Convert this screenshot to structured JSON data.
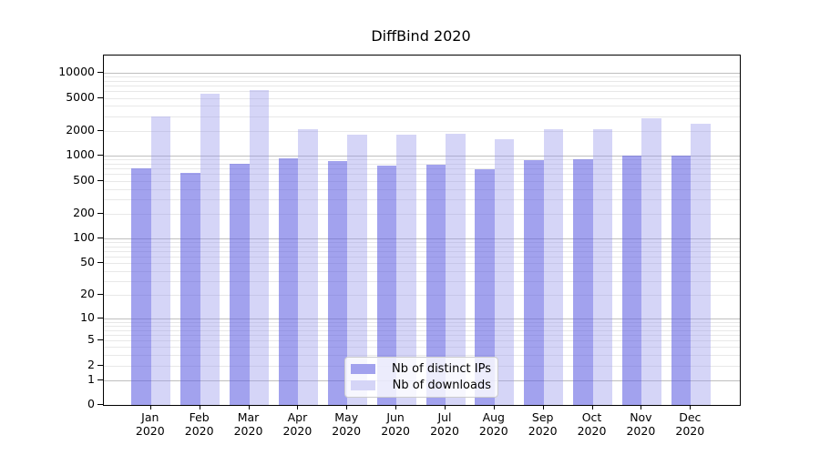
{
  "title": "DiffBind 2020",
  "chart_data": {
    "type": "bar",
    "title": "DiffBind 2020",
    "x_categories": [
      {
        "month": "Jan",
        "year": "2020"
      },
      {
        "month": "Feb",
        "year": "2020"
      },
      {
        "month": "Mar",
        "year": "2020"
      },
      {
        "month": "Apr",
        "year": "2020"
      },
      {
        "month": "May",
        "year": "2020"
      },
      {
        "month": "Jun",
        "year": "2020"
      },
      {
        "month": "Jul",
        "year": "2020"
      },
      {
        "month": "Aug",
        "year": "2020"
      },
      {
        "month": "Sep",
        "year": "2020"
      },
      {
        "month": "Oct",
        "year": "2020"
      },
      {
        "month": "Nov",
        "year": "2020"
      },
      {
        "month": "Dec",
        "year": "2020"
      }
    ],
    "series": [
      {
        "name": "Nb of distinct IPs",
        "color": "#a2a2ee",
        "fill_rgba": "rgba(95,95,225,0.58)",
        "values": [
          700,
          630,
          810,
          940,
          865,
          765,
          780,
          685,
          885,
          915,
          1010,
          1010
        ]
      },
      {
        "name": "Nb of downloads",
        "color": "#d5d5f7",
        "fill_rgba": "rgba(150,150,235,0.40)",
        "values": [
          2990,
          5630,
          6230,
          2090,
          1800,
          1790,
          1860,
          1600,
          2090,
          2090,
          2850,
          2450
        ]
      }
    ],
    "y_axis": {
      "scale": "log10(1+x)",
      "range": [
        0,
        10000
      ],
      "tick_values": [
        0,
        1,
        2,
        5,
        10,
        20,
        50,
        100,
        200,
        500,
        1000,
        2000,
        5000,
        10000
      ]
    },
    "grid": {
      "enabled": true,
      "major_values": [
        1,
        10,
        100,
        1000,
        10000
      ],
      "major_color": "#bfbfbf",
      "minor_color": "#e8e8e8"
    },
    "legend": {
      "position": "inside-bottom-center"
    }
  }
}
